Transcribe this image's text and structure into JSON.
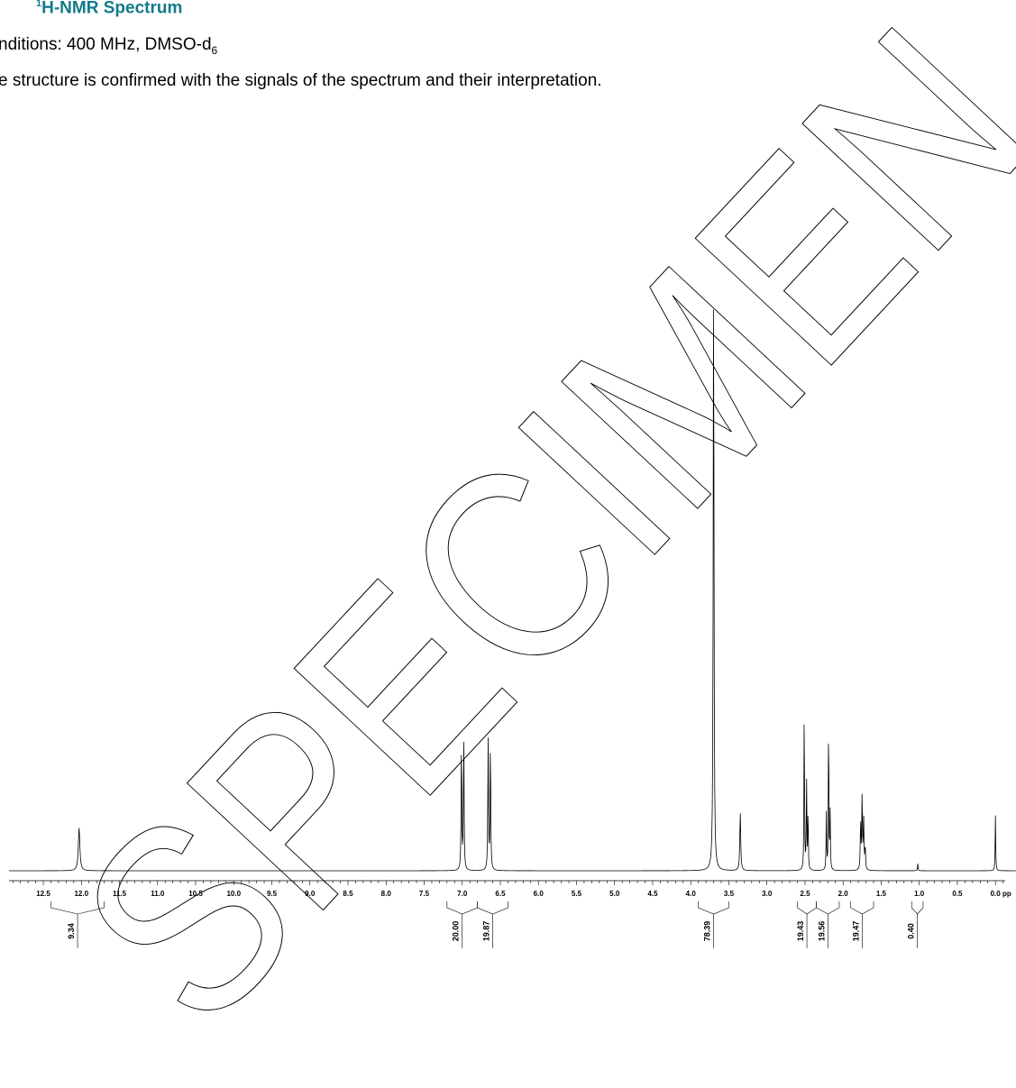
{
  "header": {
    "title_sup": "1",
    "title": "H-NMR Spectrum",
    "conditions_prefix": "nditions: 400 MHz, DMSO-d",
    "conditions_sub": "6",
    "statement": "e structure is confirmed with the signals of the spectrum and their interpretation."
  },
  "watermark": {
    "text": "SPECIMEN",
    "color": "#000000",
    "style": "outline"
  },
  "chart_data": {
    "type": "line",
    "title": "",
    "xlabel": "pp",
    "ylabel": "",
    "x_reversed": true,
    "xlim": [
      12.95,
      -0.27
    ],
    "ylim": [
      0,
      1
    ],
    "grid": false,
    "x_ticks": [
      "12.5",
      "12.0",
      "11.5",
      "11.0",
      "10.5",
      "10.0",
      "9.5",
      "9.0",
      "8.5",
      "8.0",
      "7.5",
      "7.0",
      "6.5",
      "6.0",
      "5.5",
      "5.0",
      "4.5",
      "4.0",
      "3.5",
      "3.0",
      "2.5",
      "2.0",
      "1.5",
      "1.0",
      "0.5",
      "0.0"
    ],
    "peaks": [
      {
        "ppm": 12.03,
        "height": 0.068,
        "width": 0.012
      },
      {
        "ppm": 7.01,
        "height": 0.208,
        "width": 0.005
      },
      {
        "ppm": 6.98,
        "height": 0.208,
        "width": 0.005
      },
      {
        "ppm": 6.66,
        "height": 0.208,
        "width": 0.005
      },
      {
        "ppm": 6.63,
        "height": 0.208,
        "width": 0.005
      },
      {
        "ppm": 3.7,
        "height": 0.948,
        "width": 0.006
      },
      {
        "ppm": 3.35,
        "height": 0.093,
        "width": 0.007
      },
      {
        "ppm": 2.51,
        "height": 0.271,
        "width": 0.004
      },
      {
        "ppm": 2.48,
        "height": 0.153,
        "width": 0.004
      },
      {
        "ppm": 2.46,
        "height": 0.1,
        "width": 0.004
      },
      {
        "ppm": 2.22,
        "height": 0.09,
        "width": 0.004
      },
      {
        "ppm": 2.19,
        "height": 0.258,
        "width": 0.004
      },
      {
        "ppm": 2.17,
        "height": 0.09,
        "width": 0.004
      },
      {
        "ppm": 1.77,
        "height": 0.078,
        "width": 0.005
      },
      {
        "ppm": 1.75,
        "height": 0.123,
        "width": 0.005
      },
      {
        "ppm": 1.73,
        "height": 0.078,
        "width": 0.005
      },
      {
        "ppm": 1.71,
        "height": 0.038,
        "width": 0.005
      },
      {
        "ppm": 1.02,
        "height": 0.012,
        "width": 0.004
      },
      {
        "ppm": 0.0,
        "height": 0.088,
        "width": 0.004
      }
    ],
    "integrals": [
      {
        "value": "9.34",
        "from": 12.4,
        "to": 11.7
      },
      {
        "value": "20.00",
        "from": 7.2,
        "to": 6.8
      },
      {
        "value": "19.87",
        "from": 6.8,
        "to": 6.4
      },
      {
        "value": "78.39",
        "from": 3.9,
        "to": 3.5
      },
      {
        "value": "19.43",
        "from": 2.6,
        "to": 2.35
      },
      {
        "value": "19.56",
        "from": 2.35,
        "to": 2.05
      },
      {
        "value": "19.47",
        "from": 1.9,
        "to": 1.6
      },
      {
        "value": "0.40",
        "from": 1.1,
        "to": 0.95
      }
    ]
  }
}
